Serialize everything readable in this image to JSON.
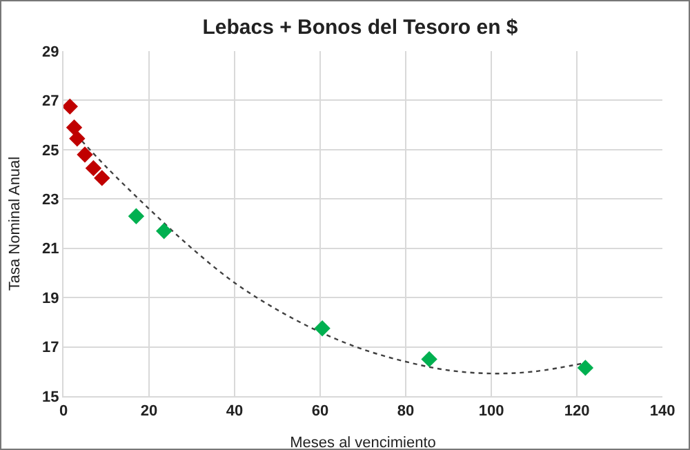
{
  "chart_data": {
    "type": "scatter",
    "title": "Lebacs + Bonos del Tesoro en $",
    "xlabel": "Meses al vencimiento",
    "ylabel": "Tasa Nominal Anual",
    "xlim": [
      0,
      140
    ],
    "xticks": [
      0,
      20,
      40,
      60,
      80,
      100,
      120,
      140
    ],
    "ylim": [
      15,
      29
    ],
    "yticks": [
      15,
      17,
      19,
      21,
      23,
      25,
      27,
      29
    ],
    "grid": true,
    "marker": "diamond",
    "series": [
      {
        "color": "#c00000",
        "x": [
          1.5,
          2.5,
          3.2,
          5,
          7,
          9
        ],
        "values": [
          26.75,
          25.9,
          25.45,
          24.8,
          24.25,
          23.85
        ]
      },
      {
        "color": "#00b050",
        "x": [
          17,
          23.5,
          60.5,
          85.5,
          122
        ],
        "values": [
          22.3,
          21.7,
          17.75,
          16.5,
          16.15
        ]
      },
      {
        "type": "line",
        "line_style": "dotted",
        "marker": "none",
        "color": "#404040",
        "x": [
          3,
          10,
          20,
          30,
          40,
          50,
          60,
          70,
          80,
          90,
          100,
          110,
          122
        ],
        "values": [
          25.6,
          24.3,
          22.6,
          21.0,
          19.6,
          18.5,
          17.6,
          16.9,
          16.4,
          16.05,
          15.92,
          16.0,
          16.35
        ]
      }
    ]
  }
}
